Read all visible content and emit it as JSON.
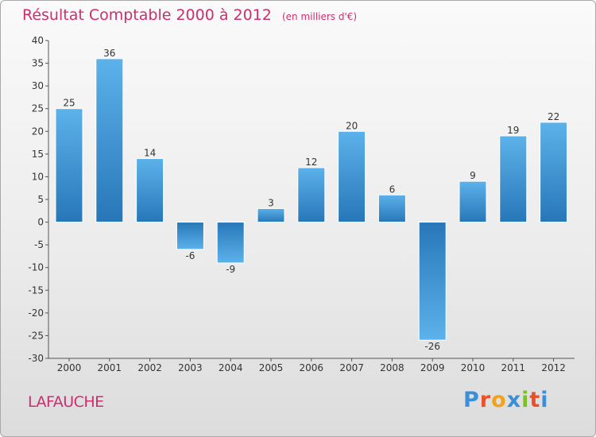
{
  "chart_data": {
    "type": "bar",
    "title": "Résultat Comptable 2000 à 2012",
    "subtitle": "(en milliers d'€)",
    "categories": [
      "2000",
      "2001",
      "2002",
      "2003",
      "2004",
      "2005",
      "2006",
      "2007",
      "2008",
      "2009",
      "2010",
      "2011",
      "2012"
    ],
    "values": [
      25,
      36,
      14,
      -6,
      -9,
      3,
      12,
      20,
      6,
      -26,
      9,
      19,
      22
    ],
    "ylim": [
      -30,
      40
    ],
    "yticks": [
      40,
      35,
      30,
      25,
      20,
      15,
      10,
      5,
      0,
      -5,
      -10,
      -15,
      -20,
      -25,
      -30
    ],
    "xlabel": "",
    "ylabel": "",
    "grid": false,
    "colors": {
      "bar_light": "#5cb2ea",
      "bar_dark": "#2777b8",
      "axis": "#555555",
      "title": "#cc2e6e"
    }
  },
  "footer": {
    "commune": "LAFAUCHE",
    "brand_letters": [
      {
        "ch": "P",
        "color": "#3a8fd8"
      },
      {
        "ch": "r",
        "color": "#e8522a"
      },
      {
        "ch": "o",
        "color": "#f0a31c"
      },
      {
        "ch": "x",
        "color": "#3a8fd8"
      },
      {
        "ch": "i",
        "color": "#7cbf2a"
      },
      {
        "ch": "t",
        "color": "#e8522a"
      },
      {
        "ch": "i",
        "color": "#3a8fd8"
      }
    ]
  }
}
